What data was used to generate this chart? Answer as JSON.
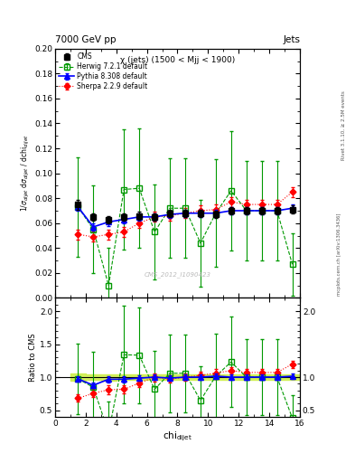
{
  "title_top": "7000 GeV pp",
  "title_right": "Jets",
  "plot_title": "χ (jets) (1500 < Mjj < 1900)",
  "watermark": "CMS_2012_I1090423",
  "ylabel_main": "1/σ_{dijet} dσ_{dijet} / dchi_{dijet}",
  "ylabel_ratio": "Ratio to CMS",
  "xlabel": "chi_{dijet}",
  "right_label": "mcplots.cern.ch [arXiv:1306.3436]",
  "right_label2": "Rivet 3.1.10, ≥ 2.5M events",
  "xlim": [
    0,
    16
  ],
  "ylim_main": [
    0,
    0.2
  ],
  "ylim_ratio": [
    0.4,
    2.2
  ],
  "cms_x": [
    1.5,
    2.5,
    3.5,
    4.5,
    5.5,
    6.5,
    7.5,
    8.5,
    9.5,
    10.5,
    11.5,
    12.5,
    13.5,
    14.5,
    15.5
  ],
  "cms_y": [
    0.075,
    0.065,
    0.063,
    0.065,
    0.066,
    0.065,
    0.068,
    0.068,
    0.068,
    0.067,
    0.07,
    0.07,
    0.07,
    0.07,
    0.071
  ],
  "cms_yerr": [
    0.004,
    0.003,
    0.003,
    0.003,
    0.003,
    0.003,
    0.003,
    0.003,
    0.003,
    0.003,
    0.003,
    0.003,
    0.003,
    0.003,
    0.003
  ],
  "herwig_x": [
    1.5,
    2.5,
    3.5,
    4.5,
    5.5,
    6.5,
    7.5,
    8.5,
    9.5,
    10.5,
    11.5,
    12.5,
    13.5,
    14.5,
    15.5
  ],
  "herwig_y": [
    0.073,
    0.055,
    0.01,
    0.087,
    0.088,
    0.053,
    0.072,
    0.072,
    0.044,
    0.068,
    0.086,
    0.07,
    0.07,
    0.07,
    0.027
  ],
  "herwig_yerr": [
    0.04,
    0.035,
    0.03,
    0.048,
    0.048,
    0.038,
    0.04,
    0.04,
    0.035,
    0.043,
    0.048,
    0.04,
    0.04,
    0.04,
    0.025
  ],
  "pythia_x": [
    1.5,
    2.5,
    3.5,
    4.5,
    5.5,
    6.5,
    7.5,
    8.5,
    9.5,
    10.5,
    11.5,
    12.5,
    13.5,
    14.5,
    15.5
  ],
  "pythia_y": [
    0.073,
    0.057,
    0.061,
    0.063,
    0.065,
    0.065,
    0.067,
    0.068,
    0.068,
    0.068,
    0.07,
    0.07,
    0.07,
    0.07,
    0.072
  ],
  "pythia_yerr": [
    0.003,
    0.003,
    0.003,
    0.003,
    0.003,
    0.003,
    0.003,
    0.003,
    0.003,
    0.003,
    0.003,
    0.003,
    0.003,
    0.003,
    0.003
  ],
  "sherpa_x": [
    1.5,
    2.5,
    3.5,
    4.5,
    5.5,
    6.5,
    7.5,
    8.5,
    9.5,
    10.5,
    11.5,
    12.5,
    13.5,
    14.5,
    15.5
  ],
  "sherpa_y": [
    0.051,
    0.049,
    0.051,
    0.053,
    0.06,
    0.065,
    0.066,
    0.068,
    0.07,
    0.071,
    0.077,
    0.075,
    0.075,
    0.075,
    0.085
  ],
  "sherpa_yerr": [
    0.004,
    0.004,
    0.004,
    0.004,
    0.004,
    0.004,
    0.004,
    0.004,
    0.004,
    0.004,
    0.004,
    0.004,
    0.004,
    0.004,
    0.004
  ],
  "cms_color": "black",
  "herwig_color": "#009900",
  "pythia_color": "blue",
  "sherpa_color": "red",
  "band_color": "#ccee44",
  "xticks": [
    0,
    2,
    4,
    6,
    8,
    10,
    12,
    14,
    16
  ],
  "yticks_main": [
    0,
    0.02,
    0.04,
    0.06,
    0.08,
    0.1,
    0.12,
    0.14,
    0.16,
    0.18,
    0.2
  ],
  "yticks_ratio": [
    0.5,
    1.0,
    1.5,
    2.0
  ]
}
